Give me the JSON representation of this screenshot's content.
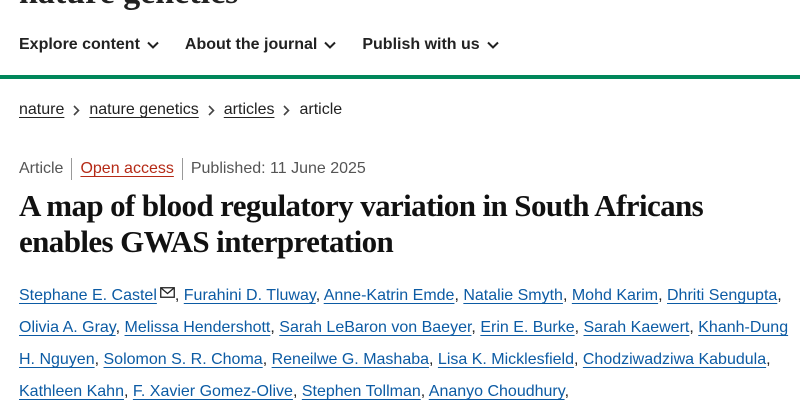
{
  "header": {
    "logo": "nature genetics",
    "nav": [
      "Explore content",
      "About the journal",
      "Publish with us"
    ]
  },
  "breadcrumb": {
    "links": [
      "nature",
      "nature genetics",
      "articles"
    ],
    "current": "article"
  },
  "meta": {
    "type": "Article",
    "access": "Open access",
    "published": "Published: 11 June 2025"
  },
  "article": {
    "title": "A map of blood regulatory variation in South Africans enables GWAS interpretation",
    "separator": ",",
    "authors": [
      "Stephane E. Castel",
      "Furahini D. Tluway",
      "Anne-Katrin Emde",
      "Natalie Smyth",
      "Mohd Karim",
      "Dhriti Sengupta",
      "Olivia A. Gray",
      "Melissa Hendershott",
      "Sarah LeBaron von Baeyer",
      "Erin E. Burke",
      "Sarah Kaewert",
      "Khanh-Dung H. Nguyen",
      "Solomon S. R. Choma",
      "Reneilwe G. Mashaba",
      "Lisa K. Micklesfield",
      "Chodziwadziwa Kabudula",
      "Kathleen Kahn",
      "F. Xavier Gomez-Olive",
      "Stephen Tollman",
      "Ananyo Choudhury"
    ]
  }
}
